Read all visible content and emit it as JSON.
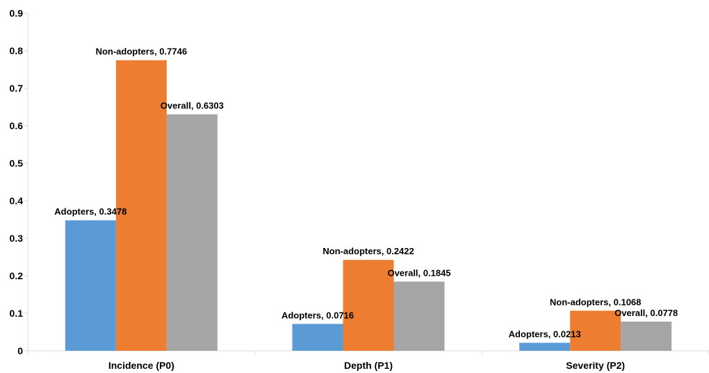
{
  "chart_data": {
    "type": "bar",
    "categories": [
      "Incidence (P0)",
      "Depth (P1)",
      "Severity (P2)"
    ],
    "series": [
      {
        "values": [
          0.3478,
          0.0716,
          0.0213
        ],
        "color": "#5B9BD5"
      },
      {
        "values": [
          0.7746,
          0.2422,
          0.1068
        ],
        "color": "#ED7D31"
      },
      {
        "values": [
          0.6303,
          0.1845,
          0.0778
        ],
        "color": "#A5A5A5"
      }
    ],
    "data_labels": [
      [
        "Adopters, 0.3478",
        "Non-adopters, 0.7746",
        "Overall, 0.6303"
      ],
      [
        "Adopters, 0.0716",
        "Non-adopters, 0.2422",
        "Overall, 0.1845"
      ],
      [
        "Adopters, 0.0213",
        "Non-adopters, 0.1068",
        "Overall, 0.0778"
      ]
    ],
    "ylim": [
      0,
      0.9
    ],
    "yticks": [
      "0",
      "0.1",
      "0.2",
      "0.3",
      "0.4",
      "0.5",
      "0.6",
      "0.7",
      "0.8",
      "0.9"
    ],
    "grid": false,
    "legend": "none"
  }
}
